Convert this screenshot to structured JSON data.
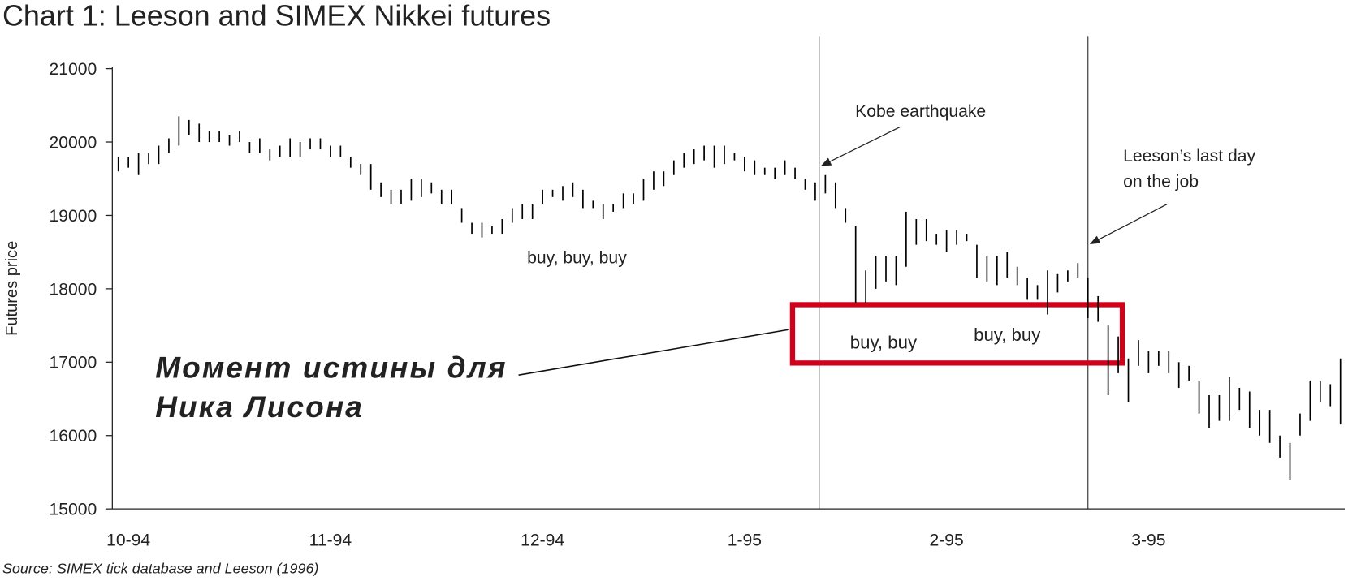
{
  "chart_data": {
    "type": "range",
    "title": "Chart 1: Leeson and SIMEX Nikkei futures",
    "y_label": "Futures price",
    "source": "Source: SIMEX tick database and Leeson (1996)",
    "annotations": [
      {
        "lines": [
          "Kobe earthquake"
        ]
      },
      {
        "lines": [
          "Leeson’s last day",
          "on the job"
        ]
      },
      {
        "lines": [
          "buy, buy, buy"
        ]
      },
      {
        "lines": [
          "buy, buy"
        ]
      },
      {
        "lines": [
          "buy, buy"
        ]
      },
      {
        "lines": [
          "Момент истины для",
          "Ника Лисона"
        ]
      }
    ],
    "color": "#000000",
    "ylim": [
      15000,
      21000
    ],
    "yticks": [
      15000,
      16000,
      17000,
      18000,
      19000,
      20000,
      21000
    ],
    "categories": [
      null,
      "10-94",
      null,
      null,
      null,
      null,
      null,
      null,
      null,
      null,
      null,
      null,
      null,
      null,
      null,
      null,
      null,
      null,
      null,
      null,
      null,
      "11-94",
      null,
      null,
      null,
      null,
      null,
      null,
      null,
      null,
      null,
      null,
      null,
      null,
      null,
      null,
      null,
      null,
      null,
      null,
      null,
      null,
      "12-94",
      null,
      null,
      null,
      null,
      null,
      null,
      null,
      null,
      null,
      null,
      null,
      null,
      null,
      null,
      null,
      null,
      null,
      null,
      null,
      "1-95",
      null,
      null,
      null,
      null,
      null,
      null,
      null,
      null,
      null,
      null,
      null,
      null,
      null,
      null,
      null,
      null,
      null,
      null,
      null,
      "2-95",
      null,
      null,
      null,
      null,
      null,
      null,
      null,
      null,
      null,
      null,
      null,
      null,
      null,
      null,
      null,
      null,
      null,
      null,
      null,
      "3-95",
      null,
      null,
      null,
      null,
      null,
      null,
      null,
      null,
      null,
      null,
      null,
      null,
      null,
      null,
      null,
      null,
      null,
      null,
      null
    ],
    "high": [
      19800,
      19800,
      19850,
      19850,
      19950,
      20050,
      20350,
      20300,
      20250,
      20150,
      20150,
      20100,
      20150,
      20000,
      20050,
      19900,
      19950,
      20050,
      20000,
      20050,
      20050,
      19950,
      19950,
      19800,
      19700,
      19700,
      19450,
      19350,
      19350,
      19500,
      19500,
      19450,
      19350,
      19350,
      19100,
      18900,
      18900,
      18850,
      18950,
      19100,
      19150,
      19150,
      19350,
      19350,
      19400,
      19450,
      19350,
      19200,
      19150,
      19150,
      19300,
      19300,
      19500,
      19600,
      19600,
      19750,
      19850,
      19900,
      19950,
      19950,
      19950,
      19850,
      19800,
      19750,
      19650,
      19650,
      19750,
      19650,
      19500,
      19450,
      19550,
      19450,
      19100,
      18850,
      18250,
      18450,
      18450,
      18450,
      19050,
      18950,
      18950,
      18750,
      18800,
      18800,
      18750,
      18600,
      18450,
      18450,
      18500,
      18300,
      18150,
      18050,
      18250,
      18200,
      18250,
      18350,
      18150,
      17900,
      17500,
      17350,
      17050,
      17300,
      17150,
      17150,
      17150,
      17000,
      16950,
      16750,
      16550,
      16550,
      16800,
      16650,
      16600,
      16350,
      16350,
      16000,
      15900,
      16300,
      16750,
      16750,
      16700,
      17050
    ],
    "low": [
      19600,
      19650,
      19550,
      19700,
      19700,
      19850,
      19950,
      20100,
      20000,
      20000,
      20000,
      19950,
      20000,
      19850,
      19850,
      19750,
      19800,
      19800,
      19800,
      19900,
      19900,
      19800,
      19800,
      19650,
      19550,
      19350,
      19250,
      19150,
      19150,
      19200,
      19250,
      19300,
      19150,
      19150,
      18900,
      18750,
      18700,
      18750,
      18750,
      18900,
      18950,
      18950,
      19150,
      19250,
      19200,
      19250,
      19100,
      19100,
      18950,
      19050,
      19100,
      19150,
      19200,
      19350,
      19400,
      19550,
      19650,
      19700,
      19750,
      19650,
      19700,
      19750,
      19600,
      19550,
      19550,
      19500,
      19550,
      19500,
      19350,
      19200,
      19300,
      19100,
      18900,
      17800,
      17800,
      18000,
      18100,
      18050,
      18300,
      18600,
      18650,
      18600,
      18500,
      18600,
      18650,
      18150,
      18100,
      18050,
      18150,
      18050,
      17850,
      17850,
      17650,
      17950,
      18100,
      18150,
      17600,
      17550,
      16550,
      16850,
      16450,
      16950,
      16850,
      16950,
      16850,
      16650,
      16750,
      16300,
      16100,
      16200,
      16200,
      16350,
      16100,
      16000,
      15900,
      15700,
      15400,
      16000,
      16200,
      16450,
      16400,
      16150
    ]
  }
}
